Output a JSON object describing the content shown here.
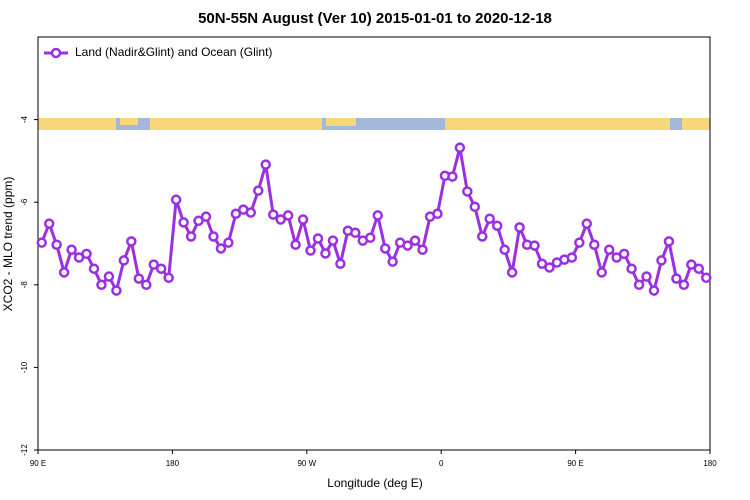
{
  "chart_data": {
    "type": "line",
    "title": "50N-55N August (Ver 10)   2015-01-01 to 2020-12-18",
    "x_label": "Longitude (deg E)",
    "y_label": "XCO2 - MLO trend (ppm)",
    "xlim": [
      90,
      540
    ],
    "xticks": [
      {
        "value": 90,
        "label": "90 E"
      },
      {
        "value": 180,
        "label": "180"
      },
      {
        "value": 270,
        "label": "90 W"
      },
      {
        "value": 360,
        "label": "0"
      },
      {
        "value": 450,
        "label": "90 E"
      },
      {
        "value": 540,
        "label": "180"
      }
    ],
    "ylim": [
      -12,
      -2
    ],
    "yticks": [
      -12,
      -10,
      -8,
      -6,
      -4
    ],
    "legend": "top-left",
    "x": [
      92.5,
      97.5,
      102.5,
      107.5,
      112.5,
      117.5,
      122.5,
      127.5,
      132.5,
      137.5,
      142.5,
      147.5,
      152.5,
      157.5,
      162.5,
      167.5,
      172.5,
      177.5,
      182.5,
      187.5,
      192.5,
      197.5,
      202.5,
      207.5,
      212.5,
      217.5,
      222.5,
      227.5,
      232.5,
      237.5,
      242.5,
      247.5,
      252.5,
      257.5,
      262.5,
      267.5,
      272.5,
      277.5,
      282.5,
      287.5,
      292.5,
      297.5,
      302.5,
      307.5,
      312.5,
      317.5,
      322.5,
      327.5,
      332.5,
      337.5,
      342.5,
      347.5,
      352.5,
      357.5,
      362.5,
      367.5,
      372.5,
      377.5,
      382.5,
      387.5,
      392.5,
      397.5,
      402.5,
      407.5,
      412.5,
      417.5,
      422.5,
      427.5,
      432.5,
      437.5,
      442.5,
      447.5,
      452.5,
      457.5,
      462.5,
      467.5,
      472.5,
      477.5,
      482.5,
      487.5,
      492.5,
      497.5,
      502.5,
      507.5,
      512.5,
      517.5,
      522.5,
      527.5,
      532.5,
      537.5
    ],
    "series": [
      {
        "name": "Land (Nadir&Glint) and Ocean (Glint)",
        "color": "#9b30e0",
        "values": [
          -6.98,
          -6.52,
          -7.03,
          -7.7,
          -7.15,
          -7.34,
          -7.25,
          -7.61,
          -8.0,
          -7.8,
          -8.14,
          -7.41,
          -6.95,
          -7.85,
          -8.0,
          -7.51,
          -7.61,
          -7.83,
          -5.94,
          -6.49,
          -6.83,
          -6.45,
          -6.35,
          -6.83,
          -7.12,
          -6.98,
          -6.28,
          -6.18,
          -6.25,
          -5.72,
          -5.09,
          -6.3,
          -6.42,
          -6.32,
          -7.03,
          -6.42,
          -7.17,
          -6.88,
          -7.24,
          -6.93,
          -7.49,
          -6.69,
          -6.74,
          -6.93,
          -6.86,
          -6.32,
          -7.12,
          -7.44,
          -6.98,
          -7.05,
          -6.93,
          -7.15,
          -6.35,
          -6.28,
          -5.36,
          -5.38,
          -4.68,
          -5.74,
          -6.11,
          -6.83,
          -6.4,
          -6.57,
          -7.15,
          -7.7,
          -6.61,
          -7.03,
          -7.05,
          -7.49,
          -7.58,
          -7.46,
          -7.39,
          -7.34,
          -6.98,
          -6.52,
          -7.03,
          -7.7,
          -7.15,
          -7.34,
          -7.25,
          -7.61,
          -8.0,
          -7.8,
          -8.14,
          -7.41,
          -6.95,
          -7.85,
          -8.0,
          -7.51,
          -7.61,
          -7.83
        ]
      }
    ]
  }
}
